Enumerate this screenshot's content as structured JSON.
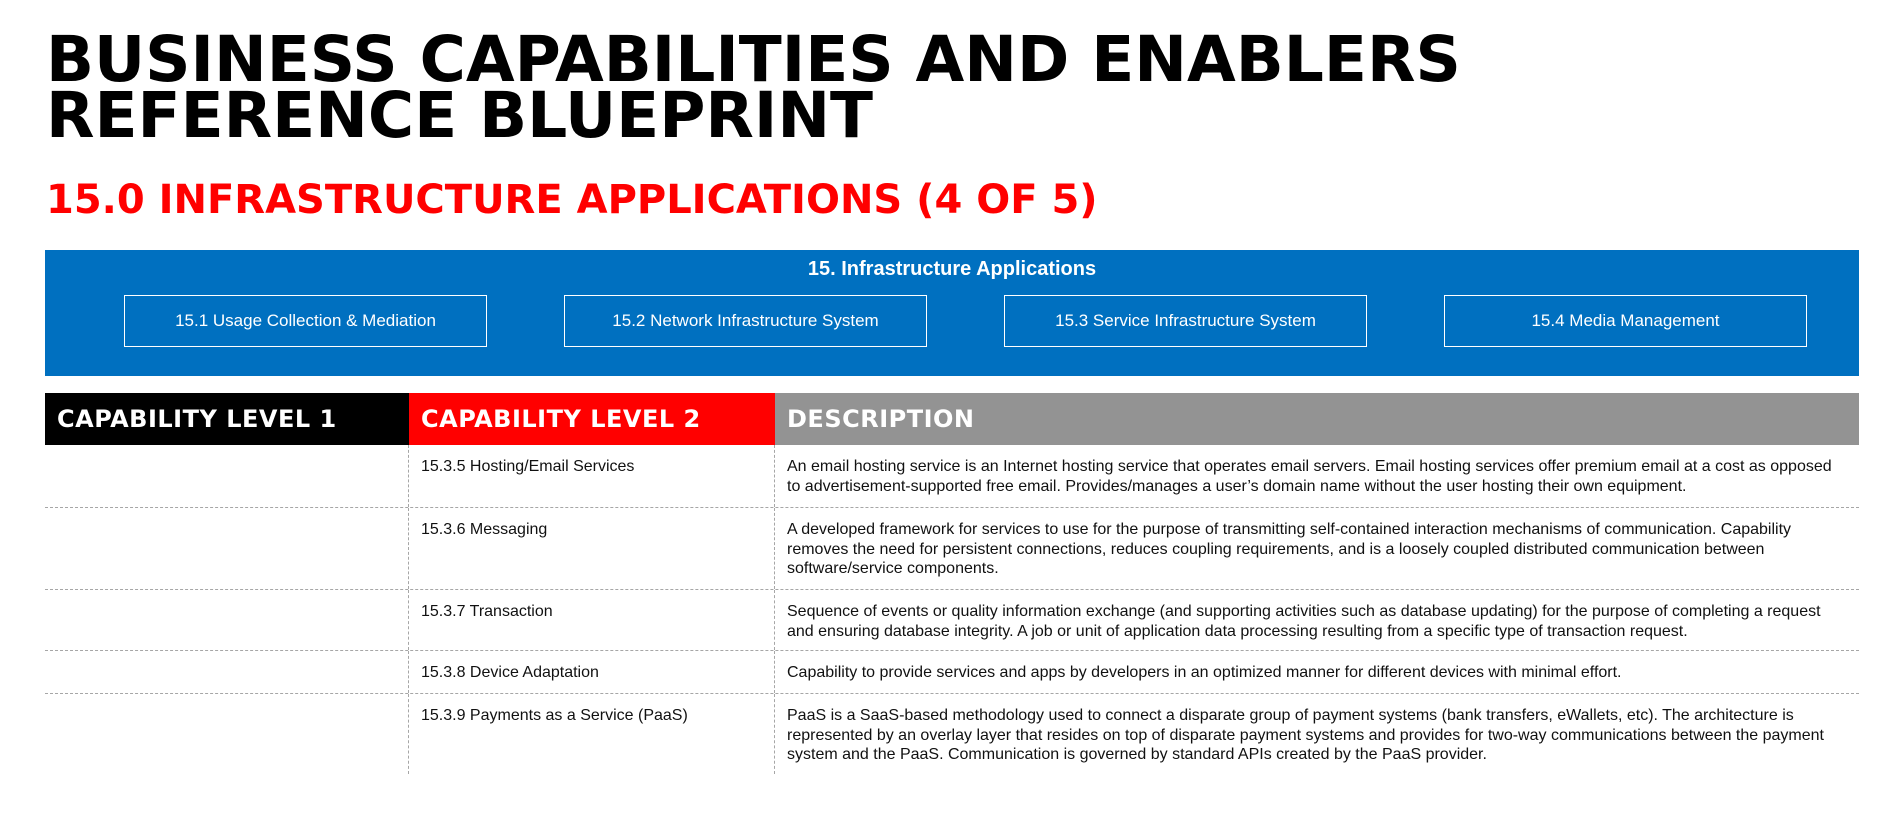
{
  "title": {
    "line1": "BUSINESS CAPABILITIES AND ENABLERS",
    "line2": "REFERENCE BLUEPRINT"
  },
  "subtitle": "15.0 INFRASTRUCTURE APPLICATIONS (4 OF 5)",
  "banner": {
    "title": "15. Infrastructure Applications",
    "boxes": [
      "15.1 Usage Collection & Mediation",
      "15.2 Network Infrastructure System",
      "15.3 Service Infrastructure System",
      "15.4 Media Management"
    ]
  },
  "table": {
    "headers": [
      "CAPABILITY LEVEL 1",
      "CAPABILITY LEVEL 2",
      "DESCRIPTION"
    ],
    "rows": [
      {
        "level1": "",
        "level2": "15.3.5 Hosting/Email Services",
        "description": "An email hosting service is an Internet hosting service that operates email servers. Email hosting services offer premium email at a cost as opposed to advertisement-supported free email. Provides/manages a user’s domain name without the user hosting their own equipment."
      },
      {
        "level1": "",
        "level2": "15.3.6 Messaging",
        "description": "A developed framework for services to use for the purpose of transmitting self-contained interaction mechanisms of communication. Capability removes the need for persistent connections, reduces coupling requirements, and is a loosely coupled distributed communication between software/service components."
      },
      {
        "level1": "",
        "level2": "15.3.7 Transaction",
        "description": "Sequence of events or quality information exchange (and supporting activities such as database updating) for the purpose of completing a request and ensuring database integrity. A job or unit of application data processing resulting from a specific type of transaction request."
      },
      {
        "level1": "",
        "level2": "15.3.8 Device Adaptation",
        "description": "Capability to provide services and apps by developers in an optimized manner for different devices with minimal effort."
      },
      {
        "level1": "",
        "level2": "15.3.9 Payments as a Service (PaaS)",
        "description": "PaaS is a SaaS-based methodology used to connect a disparate group of payment systems (bank transfers, eWallets, etc). The architecture is represented by an overlay layer that resides on top of disparate payment systems and provides for two-way communications between the payment system and the PaaS. Communication is governed by standard APIs created by the PaaS provider."
      }
    ]
  },
  "colors": {
    "banner": "#0070c0",
    "subtitle": "#ff0000",
    "header_level1": "#000000",
    "header_level2": "#ff0000",
    "header_description": "#939393"
  }
}
